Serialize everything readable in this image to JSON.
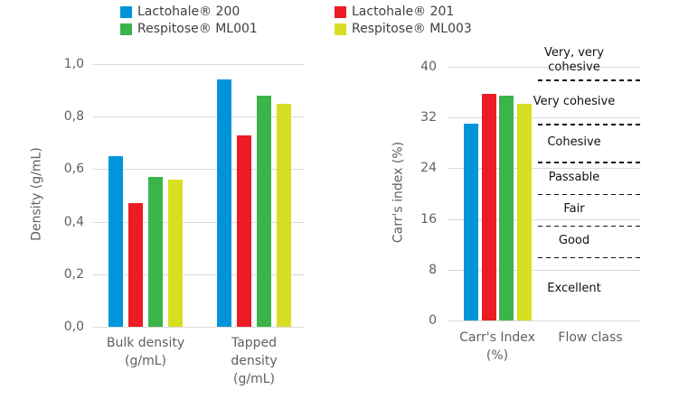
{
  "legend": {
    "items": [
      {
        "label": "Lactohale® 200",
        "color": "#0095DB"
      },
      {
        "label": "Lactohale® 201",
        "color": "#EC1C24"
      },
      {
        "label": "Respitose® ML001",
        "color": "#3BB54A"
      },
      {
        "label": "Respitose® ML003",
        "color": "#D7DF23"
      }
    ]
  },
  "chart_data": [
    {
      "type": "bar",
      "title": "",
      "ylabel": "Density (g/mL)",
      "xlabel": "",
      "ylim": [
        0,
        1.0
      ],
      "yticks": [
        0,
        0.2,
        0.4,
        0.6,
        0.8,
        1.0
      ],
      "ytick_labels": [
        "0,0",
        "0,2",
        "0,4",
        "0,6",
        "0,8",
        "1,0"
      ],
      "grid": true,
      "legend_position": "top-center",
      "categories": [
        "Bulk density\n(g/mL)",
        "Tapped\ndensity\n(g/mL)"
      ],
      "series": [
        {
          "name": "Lactohale® 200",
          "color": "#0095DB",
          "values": [
            0.65,
            0.94
          ]
        },
        {
          "name": "Lactohale® 201",
          "color": "#EC1C24",
          "values": [
            0.47,
            0.73
          ]
        },
        {
          "name": "Respitose® ML001",
          "color": "#3BB54A",
          "values": [
            0.57,
            0.88
          ]
        },
        {
          "name": "Respitose® ML003",
          "color": "#D7DF23",
          "values": [
            0.56,
            0.85
          ]
        }
      ]
    },
    {
      "type": "bar",
      "title": "",
      "ylabel": "Carr's index (%)",
      "xlabel": "",
      "ylim": [
        0,
        40
      ],
      "yticks": [
        0,
        8,
        16,
        24,
        32,
        40
      ],
      "ytick_labels": [
        "0",
        "8",
        "16",
        "24",
        "32",
        "40"
      ],
      "grid": true,
      "categories": [
        "Carr's Index\n(%)",
        "Flow class"
      ],
      "series": [
        {
          "name": "Lactohale® 200",
          "color": "#0095DB",
          "values": [
            31
          ]
        },
        {
          "name": "Lactohale® 201",
          "color": "#EC1C24",
          "values": [
            35.8
          ]
        },
        {
          "name": "Respitose® ML001",
          "color": "#3BB54A",
          "values": [
            35.5
          ]
        },
        {
          "name": "Respitose® ML003",
          "color": "#D7DF23",
          "values": [
            34.2
          ]
        }
      ],
      "flow_class_boundaries": [
        38,
        31,
        25,
        20,
        15,
        10
      ],
      "flow_classes": [
        {
          "label": "Very, very\ncohesive",
          "center_value": 41
        },
        {
          "label": "Very cohesive",
          "center_value": 34.5
        },
        {
          "label": "Cohesive",
          "center_value": 28
        },
        {
          "label": "Passable",
          "center_value": 22.5
        },
        {
          "label": "Fair",
          "center_value": 17.5
        },
        {
          "label": "Good",
          "center_value": 12.5
        },
        {
          "label": "Excellent",
          "center_value": 5
        }
      ]
    }
  ],
  "colors": {
    "grid": "#D9D9D9",
    "axis_text": "#606060",
    "flow_text": "#111111",
    "dashed_line": "#111111",
    "background": "#FFFFFF"
  }
}
